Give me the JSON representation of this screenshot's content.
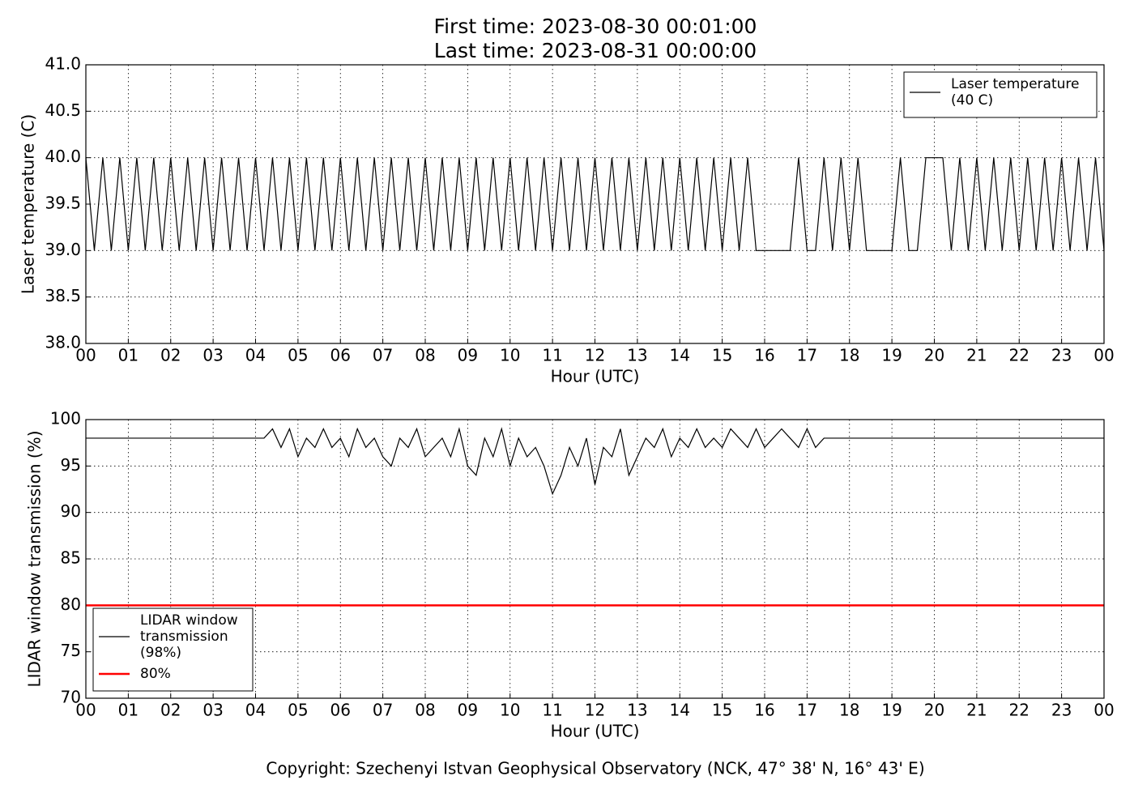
{
  "chart_data": [
    {
      "type": "line",
      "title": [
        "First time: 2023-08-30 00:01:00",
        "Last time: 2023-08-31 00:00:00"
      ],
      "x_label": "Hour (UTC)",
      "y_label": "Laser temperature (C)",
      "xlim": [
        0,
        24
      ],
      "ylim": [
        38,
        41
      ],
      "xticks": [
        {
          "value": 0,
          "label": "00"
        },
        {
          "value": 1,
          "label": "01"
        },
        {
          "value": 2,
          "label": "02"
        },
        {
          "value": 3,
          "label": "03"
        },
        {
          "value": 4,
          "label": "04"
        },
        {
          "value": 5,
          "label": "05"
        },
        {
          "value": 6,
          "label": "06"
        },
        {
          "value": 7,
          "label": "07"
        },
        {
          "value": 8,
          "label": "08"
        },
        {
          "value": 9,
          "label": "09"
        },
        {
          "value": 10,
          "label": "10"
        },
        {
          "value": 11,
          "label": "11"
        },
        {
          "value": 12,
          "label": "12"
        },
        {
          "value": 13,
          "label": "13"
        },
        {
          "value": 14,
          "label": "14"
        },
        {
          "value": 15,
          "label": "15"
        },
        {
          "value": 16,
          "label": "16"
        },
        {
          "value": 17,
          "label": "17"
        },
        {
          "value": 18,
          "label": "18"
        },
        {
          "value": 19,
          "label": "19"
        },
        {
          "value": 20,
          "label": "20"
        },
        {
          "value": 21,
          "label": "21"
        },
        {
          "value": 22,
          "label": "22"
        },
        {
          "value": 23,
          "label": "23"
        },
        {
          "value": 24,
          "label": "00"
        }
      ],
      "yticks": [
        {
          "value": 38,
          "label": "38.0"
        },
        38.5,
        {
          "value": 39,
          "label": "39.0"
        },
        39.5,
        {
          "value": 40,
          "label": "40.0"
        },
        40.5,
        {
          "value": 41,
          "label": "41.0"
        }
      ],
      "grid": true,
      "legend": "upper right",
      "series": [
        {
          "name": "Laser temperature\n(40 C)",
          "color": "#000000",
          "x": [
            0,
            0.2,
            0.4,
            0.6,
            0.8,
            1,
            1.2,
            1.4,
            1.6,
            1.8,
            2,
            2.2,
            2.4,
            2.6,
            2.8,
            3,
            3.2,
            3.4,
            3.6,
            3.8,
            4,
            4.2,
            4.4,
            4.6,
            4.8,
            5,
            5.2,
            5.4,
            5.6,
            5.8,
            6,
            6.2,
            6.4,
            6.6,
            6.8,
            7,
            7.2,
            7.4,
            7.6,
            7.8,
            8,
            8.2,
            8.4,
            8.6,
            8.8,
            9,
            9.2,
            9.4,
            9.6,
            9.8,
            10,
            10.2,
            10.4,
            10.6,
            10.8,
            11,
            11.2,
            11.4,
            11.6,
            11.8,
            12,
            12.2,
            12.4,
            12.6,
            12.8,
            13,
            13.2,
            13.4,
            13.6,
            13.8,
            14,
            14.2,
            14.4,
            14.6,
            14.8,
            15,
            15.2,
            15.4,
            15.6,
            15.8,
            16,
            16.2,
            16.4,
            16.6,
            16.8,
            17,
            17.2,
            17.4,
            17.6,
            17.8,
            18,
            18.2,
            18.4,
            18.6,
            18.8,
            19,
            19.2,
            19.4,
            19.6,
            19.8,
            20,
            20.2,
            20.4,
            20.6,
            20.8,
            21,
            21.2,
            21.4,
            21.6,
            21.8,
            22,
            22.2,
            22.4,
            22.6,
            22.8,
            23,
            23.2,
            23.4,
            23.6,
            23.8,
            24
          ],
          "values": [
            40,
            39,
            40,
            39,
            40,
            39,
            40,
            39,
            40,
            39,
            40,
            39,
            40,
            39,
            40,
            39,
            40,
            39,
            40,
            39,
            40,
            39,
            40,
            39,
            40,
            39,
            40,
            39,
            40,
            39,
            40,
            39,
            40,
            39,
            40,
            39,
            40,
            39,
            40,
            39,
            40,
            39,
            40,
            39,
            40,
            39,
            40,
            39,
            40,
            39,
            40,
            39,
            40,
            39,
            40,
            39,
            40,
            39,
            40,
            39,
            40,
            39,
            40,
            39,
            40,
            39,
            40,
            39,
            40,
            39,
            40,
            39,
            40,
            39,
            40,
            39,
            40,
            39,
            40,
            39,
            39,
            39,
            39,
            39,
            40,
            39,
            39,
            40,
            39,
            40,
            39,
            40,
            39,
            39,
            39,
            39,
            40,
            39,
            39,
            40,
            40,
            40,
            39,
            40,
            39,
            40,
            39,
            40,
            39,
            40,
            39,
            40,
            39,
            40,
            39,
            40,
            39,
            40,
            39,
            40,
            39
          ]
        }
      ]
    },
    {
      "type": "line",
      "x_label": "Hour (UTC)",
      "y_label": "LIDAR window transmission (%)",
      "xlim": [
        0,
        24
      ],
      "ylim": [
        70,
        100
      ],
      "xticks": [
        {
          "value": 0,
          "label": "00"
        },
        {
          "value": 1,
          "label": "01"
        },
        {
          "value": 2,
          "label": "02"
        },
        {
          "value": 3,
          "label": "03"
        },
        {
          "value": 4,
          "label": "04"
        },
        {
          "value": 5,
          "label": "05"
        },
        {
          "value": 6,
          "label": "06"
        },
        {
          "value": 7,
          "label": "07"
        },
        {
          "value": 8,
          "label": "08"
        },
        {
          "value": 9,
          "label": "09"
        },
        {
          "value": 10,
          "label": "10"
        },
        {
          "value": 11,
          "label": "11"
        },
        {
          "value": 12,
          "label": "12"
        },
        {
          "value": 13,
          "label": "13"
        },
        {
          "value": 14,
          "label": "14"
        },
        {
          "value": 15,
          "label": "15"
        },
        {
          "value": 16,
          "label": "16"
        },
        {
          "value": 17,
          "label": "17"
        },
        {
          "value": 18,
          "label": "18"
        },
        {
          "value": 19,
          "label": "19"
        },
        {
          "value": 20,
          "label": "20"
        },
        {
          "value": 21,
          "label": "21"
        },
        {
          "value": 22,
          "label": "22"
        },
        {
          "value": 23,
          "label": "23"
        },
        {
          "value": 24,
          "label": "00"
        }
      ],
      "yticks": [
        70,
        75,
        80,
        85,
        90,
        95,
        100
      ],
      "grid": true,
      "legend": "lower left",
      "series": [
        {
          "name": "LIDAR window\ntransmission\n(98%)",
          "color": "#000000",
          "x": [
            0,
            0.2,
            0.4,
            0.6,
            0.8,
            1,
            1.2,
            1.4,
            1.6,
            1.8,
            2,
            2.2,
            2.4,
            2.6,
            2.8,
            3,
            3.2,
            3.4,
            3.6,
            3.8,
            4,
            4.2,
            4.4,
            4.6,
            4.8,
            5,
            5.2,
            5.4,
            5.6,
            5.8,
            6,
            6.2,
            6.4,
            6.6,
            6.8,
            7,
            7.2,
            7.4,
            7.6,
            7.8,
            8,
            8.2,
            8.4,
            8.6,
            8.8,
            9,
            9.2,
            9.4,
            9.6,
            9.8,
            10,
            10.2,
            10.4,
            10.6,
            10.8,
            11,
            11.2,
            11.4,
            11.6,
            11.8,
            12,
            12.2,
            12.4,
            12.6,
            12.8,
            13,
            13.2,
            13.4,
            13.6,
            13.8,
            14,
            14.2,
            14.4,
            14.6,
            14.8,
            15,
            15.2,
            15.4,
            15.6,
            15.8,
            16,
            16.2,
            16.4,
            16.6,
            16.8,
            17,
            17.2,
            17.4,
            17.6,
            17.8,
            18,
            18.2,
            18.4,
            18.6,
            18.8,
            19,
            19.2,
            19.4,
            19.6,
            19.8,
            20,
            20.2,
            20.4,
            20.6,
            20.8,
            21,
            21.2,
            21.4,
            21.6,
            21.8,
            22,
            22.2,
            22.4,
            22.6,
            22.8,
            23,
            23.2,
            23.4,
            23.6,
            23.8,
            24
          ],
          "values": [
            98,
            98,
            98,
            98,
            98,
            98,
            98,
            98,
            98,
            98,
            98,
            98,
            98,
            98,
            98,
            98,
            98,
            98,
            98,
            98,
            98,
            98,
            99,
            97,
            99,
            96,
            98,
            97,
            99,
            97,
            98,
            96,
            99,
            97,
            98,
            96,
            95,
            98,
            97,
            99,
            96,
            97,
            98,
            96,
            99,
            95,
            94,
            98,
            96,
            99,
            95,
            98,
            96,
            97,
            95,
            92,
            94,
            97,
            95,
            98,
            93,
            97,
            96,
            99,
            94,
            96,
            98,
            97,
            99,
            96,
            98,
            97,
            99,
            97,
            98,
            97,
            99,
            98,
            97,
            99,
            97,
            98,
            99,
            98,
            97,
            99,
            97,
            98,
            98,
            98,
            98,
            98,
            98,
            98,
            98,
            98,
            98,
            98,
            98,
            98,
            98,
            98,
            98,
            98,
            98,
            98,
            98,
            98,
            98,
            98,
            98,
            98,
            98,
            98,
            98,
            98,
            98,
            98,
            98,
            98,
            98
          ]
        },
        {
          "name": "80%",
          "color": "#ff0000",
          "x": [
            0,
            24
          ],
          "values": [
            80,
            80
          ]
        }
      ]
    }
  ],
  "footer": "Copyright: Szechenyi Istvan Geophysical Observatory (NCK, 47° 38' N, 16° 43' E)"
}
